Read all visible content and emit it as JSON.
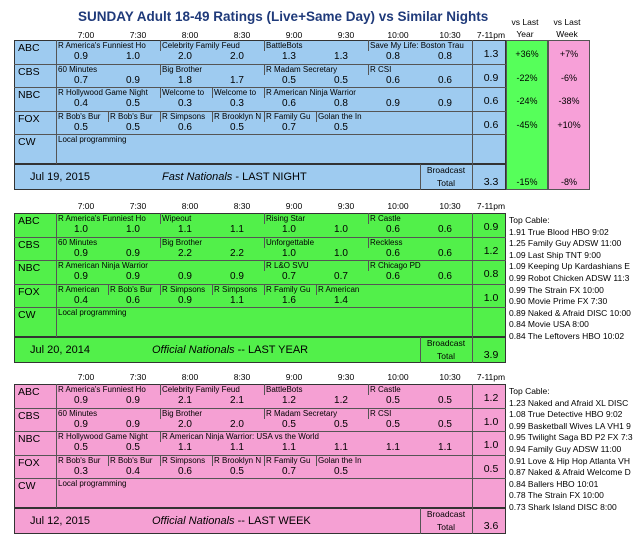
{
  "title": "SUNDAY Adult 18-49 Ratings (Live+Same Day) vs Similar Nights",
  "title_parts": {
    "day": "SUNDAY",
    "rest": "Adult 18-49 Ratings (Live+Same Day) vs Similar Nights"
  },
  "colors": {
    "blue": "#9ecbf0",
    "green": "#52f04a",
    "pink": "#f5a0d3",
    "vs_green": "#56ff5a",
    "vs_pink": "#f7a0d8"
  },
  "vs_headers": {
    "year": "vs Last Year",
    "week": "vs Last Week"
  },
  "time_headers": [
    "7:00",
    "7:30",
    "8:00",
    "8:30",
    "9:00",
    "9:30",
    "10:00",
    "10:30",
    "7-11pm"
  ],
  "sections": [
    {
      "id": "s1",
      "rows": [
        {
          "net": "ABC",
          "progs": [
            [
              "R America's Funniest Ho",
              0
            ],
            [
              "Celebrity Family Feud",
              2
            ],
            [
              "BattleBots",
              4
            ],
            [
              "Save My Life: Boston Trau",
              6
            ]
          ],
          "ratings": [
            "0.9",
            "1.0",
            "2.0",
            "2.0",
            "1.3",
            "1.3",
            "0.8",
            "0.8"
          ],
          "total": "1.3",
          "vs_year": "+36%",
          "vs_week": "+7%"
        },
        {
          "net": "CBS",
          "progs": [
            [
              "60 Minutes",
              0
            ],
            [
              "Big Brother",
              2
            ],
            [
              "R Madam Secretary",
              4
            ],
            [
              "R CSI",
              6
            ]
          ],
          "ratings": [
            "0.7",
            "0.9",
            "1.8",
            "1.7",
            "0.5",
            "0.5",
            "0.6",
            "0.6"
          ],
          "total": "0.9",
          "vs_year": "-22%",
          "vs_week": "-6%"
        },
        {
          "net": "NBC",
          "progs": [
            [
              "R Hollywood Game Night",
              0
            ],
            [
              "Welcome to",
              2
            ],
            [
              "Welcome to",
              3
            ],
            [
              "R American Ninja Warrior",
              4
            ]
          ],
          "ratings": [
            "0.4",
            "0.5",
            "0.3",
            "0.3",
            "0.6",
            "0.8",
            "0.9",
            "0.9"
          ],
          "total": "0.6",
          "vs_year": "-24%",
          "vs_week": "-38%"
        },
        {
          "net": "FOX",
          "progs": [
            [
              "R Bob's Bur",
              0
            ],
            [
              "R Bob's Bur",
              1
            ],
            [
              "R Simpsons",
              2
            ],
            [
              "R Brooklyn N",
              3
            ],
            [
              "R Family Gu",
              4
            ],
            [
              "Golan the In",
              5
            ]
          ],
          "ratings": [
            "0.5",
            "0.5",
            "0.6",
            "0.5",
            "0.7",
            "0.5",
            "",
            ""
          ],
          "total": "0.6",
          "vs_year": "-45%",
          "vs_week": "+10%"
        },
        {
          "net": "CW",
          "progs": [
            [
              "Local programming",
              0
            ]
          ],
          "ratings": [
            "",
            "",
            "",
            "",
            "",
            "",
            "",
            ""
          ],
          "total": "",
          "vs_year": "",
          "vs_week": ""
        }
      ],
      "footer": {
        "date": "Jul 19, 2015",
        "label_bold": "Fast Nationals",
        "label_rest": " - LAST NIGHT",
        "broadcast": "Broadcast",
        "total_label": "Total",
        "total": "3.3",
        "vs_year": "-15%",
        "vs_week": "-8%"
      }
    },
    {
      "id": "s2",
      "rows": [
        {
          "net": "ABC",
          "progs": [
            [
              "R America's Funniest Ho",
              0
            ],
            [
              "Wipeout",
              2
            ],
            [
              "Rising Star",
              4
            ],
            [
              "R Castle",
              6
            ]
          ],
          "ratings": [
            "1.0",
            "1.0",
            "1.1",
            "1.1",
            "1.0",
            "1.0",
            "0.6",
            "0.6"
          ],
          "total": "0.9"
        },
        {
          "net": "CBS",
          "progs": [
            [
              "60 Minutes",
              0
            ],
            [
              "Big Brother",
              2
            ],
            [
              "Unforgettable",
              4
            ],
            [
              "Reckless",
              6
            ]
          ],
          "ratings": [
            "0.9",
            "0.9",
            "2.2",
            "2.2",
            "1.0",
            "1.0",
            "0.6",
            "0.6"
          ],
          "total": "1.2"
        },
        {
          "net": "NBC",
          "progs": [
            [
              "R American Ninja Warrior",
              0
            ],
            [
              "R L&O SVU",
              4
            ],
            [
              "R Chicago PD",
              6
            ]
          ],
          "ratings": [
            "0.9",
            "0.9",
            "0.9",
            "0.9",
            "0.7",
            "0.7",
            "0.6",
            "0.6"
          ],
          "total": "0.8"
        },
        {
          "net": "FOX",
          "progs": [
            [
              "R American",
              0
            ],
            [
              "R Bob's Bur",
              1
            ],
            [
              "R Simpsons",
              2
            ],
            [
              "R Simpsons",
              3
            ],
            [
              "R Family Gu",
              4
            ],
            [
              "R American",
              5
            ]
          ],
          "ratings": [
            "0.4",
            "0.6",
            "0.9",
            "1.1",
            "1.6",
            "1.4",
            "",
            ""
          ],
          "total": "1.0"
        },
        {
          "net": "CW",
          "progs": [
            [
              "Local programming",
              0
            ]
          ],
          "ratings": [
            "",
            "",
            "",
            "",
            "",
            "",
            "",
            ""
          ],
          "total": ""
        }
      ],
      "footer": {
        "date": "Jul 20, 2014",
        "label_bold": "Official Nationals",
        "label_rest": " --  LAST YEAR",
        "broadcast": "Broadcast",
        "total_label": "Total",
        "total": "3.9"
      },
      "top_cable": [
        "Top Cable:",
        "1.91 True Blood HBO 9:02",
        "1.25 Family Guy ADSW 11:00",
        "1.09 Last Ship TNT 9:00",
        "1.09 Keeping Up Kardashians E",
        "0.99 Robot Chicken ADSW 11:3",
        "0.99 The Strain FX 10:00",
        "0.90 Movie Prime FX 7:30",
        "0.89 Naked & Afraid DISC 10:00",
        "0.84 Movie USA 8:00",
        "0.84 The Leftovers HBO 10:02"
      ]
    },
    {
      "id": "s3",
      "rows": [
        {
          "net": "ABC",
          "progs": [
            [
              "R America's Funniest Ho",
              0
            ],
            [
              "Celebrity Family Feud",
              2
            ],
            [
              "BattleBots",
              4
            ],
            [
              "R Castle",
              6
            ]
          ],
          "ratings": [
            "0.9",
            "0.9",
            "2.1",
            "2.1",
            "1.2",
            "1.2",
            "0.5",
            "0.5"
          ],
          "total": "1.2"
        },
        {
          "net": "CBS",
          "progs": [
            [
              "60 Minutes",
              0
            ],
            [
              "Big Brother",
              2
            ],
            [
              "R Madam Secretary",
              4
            ],
            [
              "R CSI",
              6
            ]
          ],
          "ratings": [
            "0.9",
            "0.9",
            "2.0",
            "2.0",
            "0.5",
            "0.5",
            "0.5",
            "0.5"
          ],
          "total": "1.0"
        },
        {
          "net": "NBC",
          "progs": [
            [
              "R Hollywood Game Night",
              0
            ],
            [
              "R American Ninja Warrior: USA vs the World",
              2
            ]
          ],
          "ratings": [
            "0.5",
            "0.5",
            "1.1",
            "1.1",
            "1.1",
            "1.1",
            "1.1",
            "1.1"
          ],
          "total": "1.0"
        },
        {
          "net": "FOX",
          "progs": [
            [
              "R Bob's Bur",
              0
            ],
            [
              "R Bob's Bur",
              1
            ],
            [
              "R Simpsons",
              2
            ],
            [
              "R Brooklyn N",
              3
            ],
            [
              "R Family Gu",
              4
            ],
            [
              "Golan the In",
              5
            ]
          ],
          "ratings": [
            "0.3",
            "0.4",
            "0.6",
            "0.5",
            "0.7",
            "0.5",
            "",
            ""
          ],
          "total": "0.5"
        },
        {
          "net": "CW",
          "progs": [
            [
              "Local programming",
              0
            ]
          ],
          "ratings": [
            "",
            "",
            "",
            "",
            "",
            "",
            "",
            ""
          ],
          "total": ""
        }
      ],
      "footer": {
        "date": "Jul 12, 2015",
        "label_bold": "Official Nationals",
        "label_rest": " --  LAST WEEK",
        "broadcast": "Broadcast",
        "total_label": "Total",
        "total": "3.6"
      },
      "top_cable": [
        "Top Cable:",
        "1.23 Naked and Afraid XL DISC",
        "1.08 True Detective HBO 9:02",
        "0.99 Basketball Wives LA VH1 9",
        "0.95 Twilight Saga BD P2 FX 7:3",
        "0.94 Family Guy ADSW 11:00",
        "0.91 Love & Hip Hop Atlanta VH",
        "0.87 Naked & Afraid Welcome D",
        "0.84 Ballers HBO 10:01",
        "0.78 The Strain FX 10:00",
        "0.73 Shark Island DISC 8:00"
      ]
    }
  ]
}
